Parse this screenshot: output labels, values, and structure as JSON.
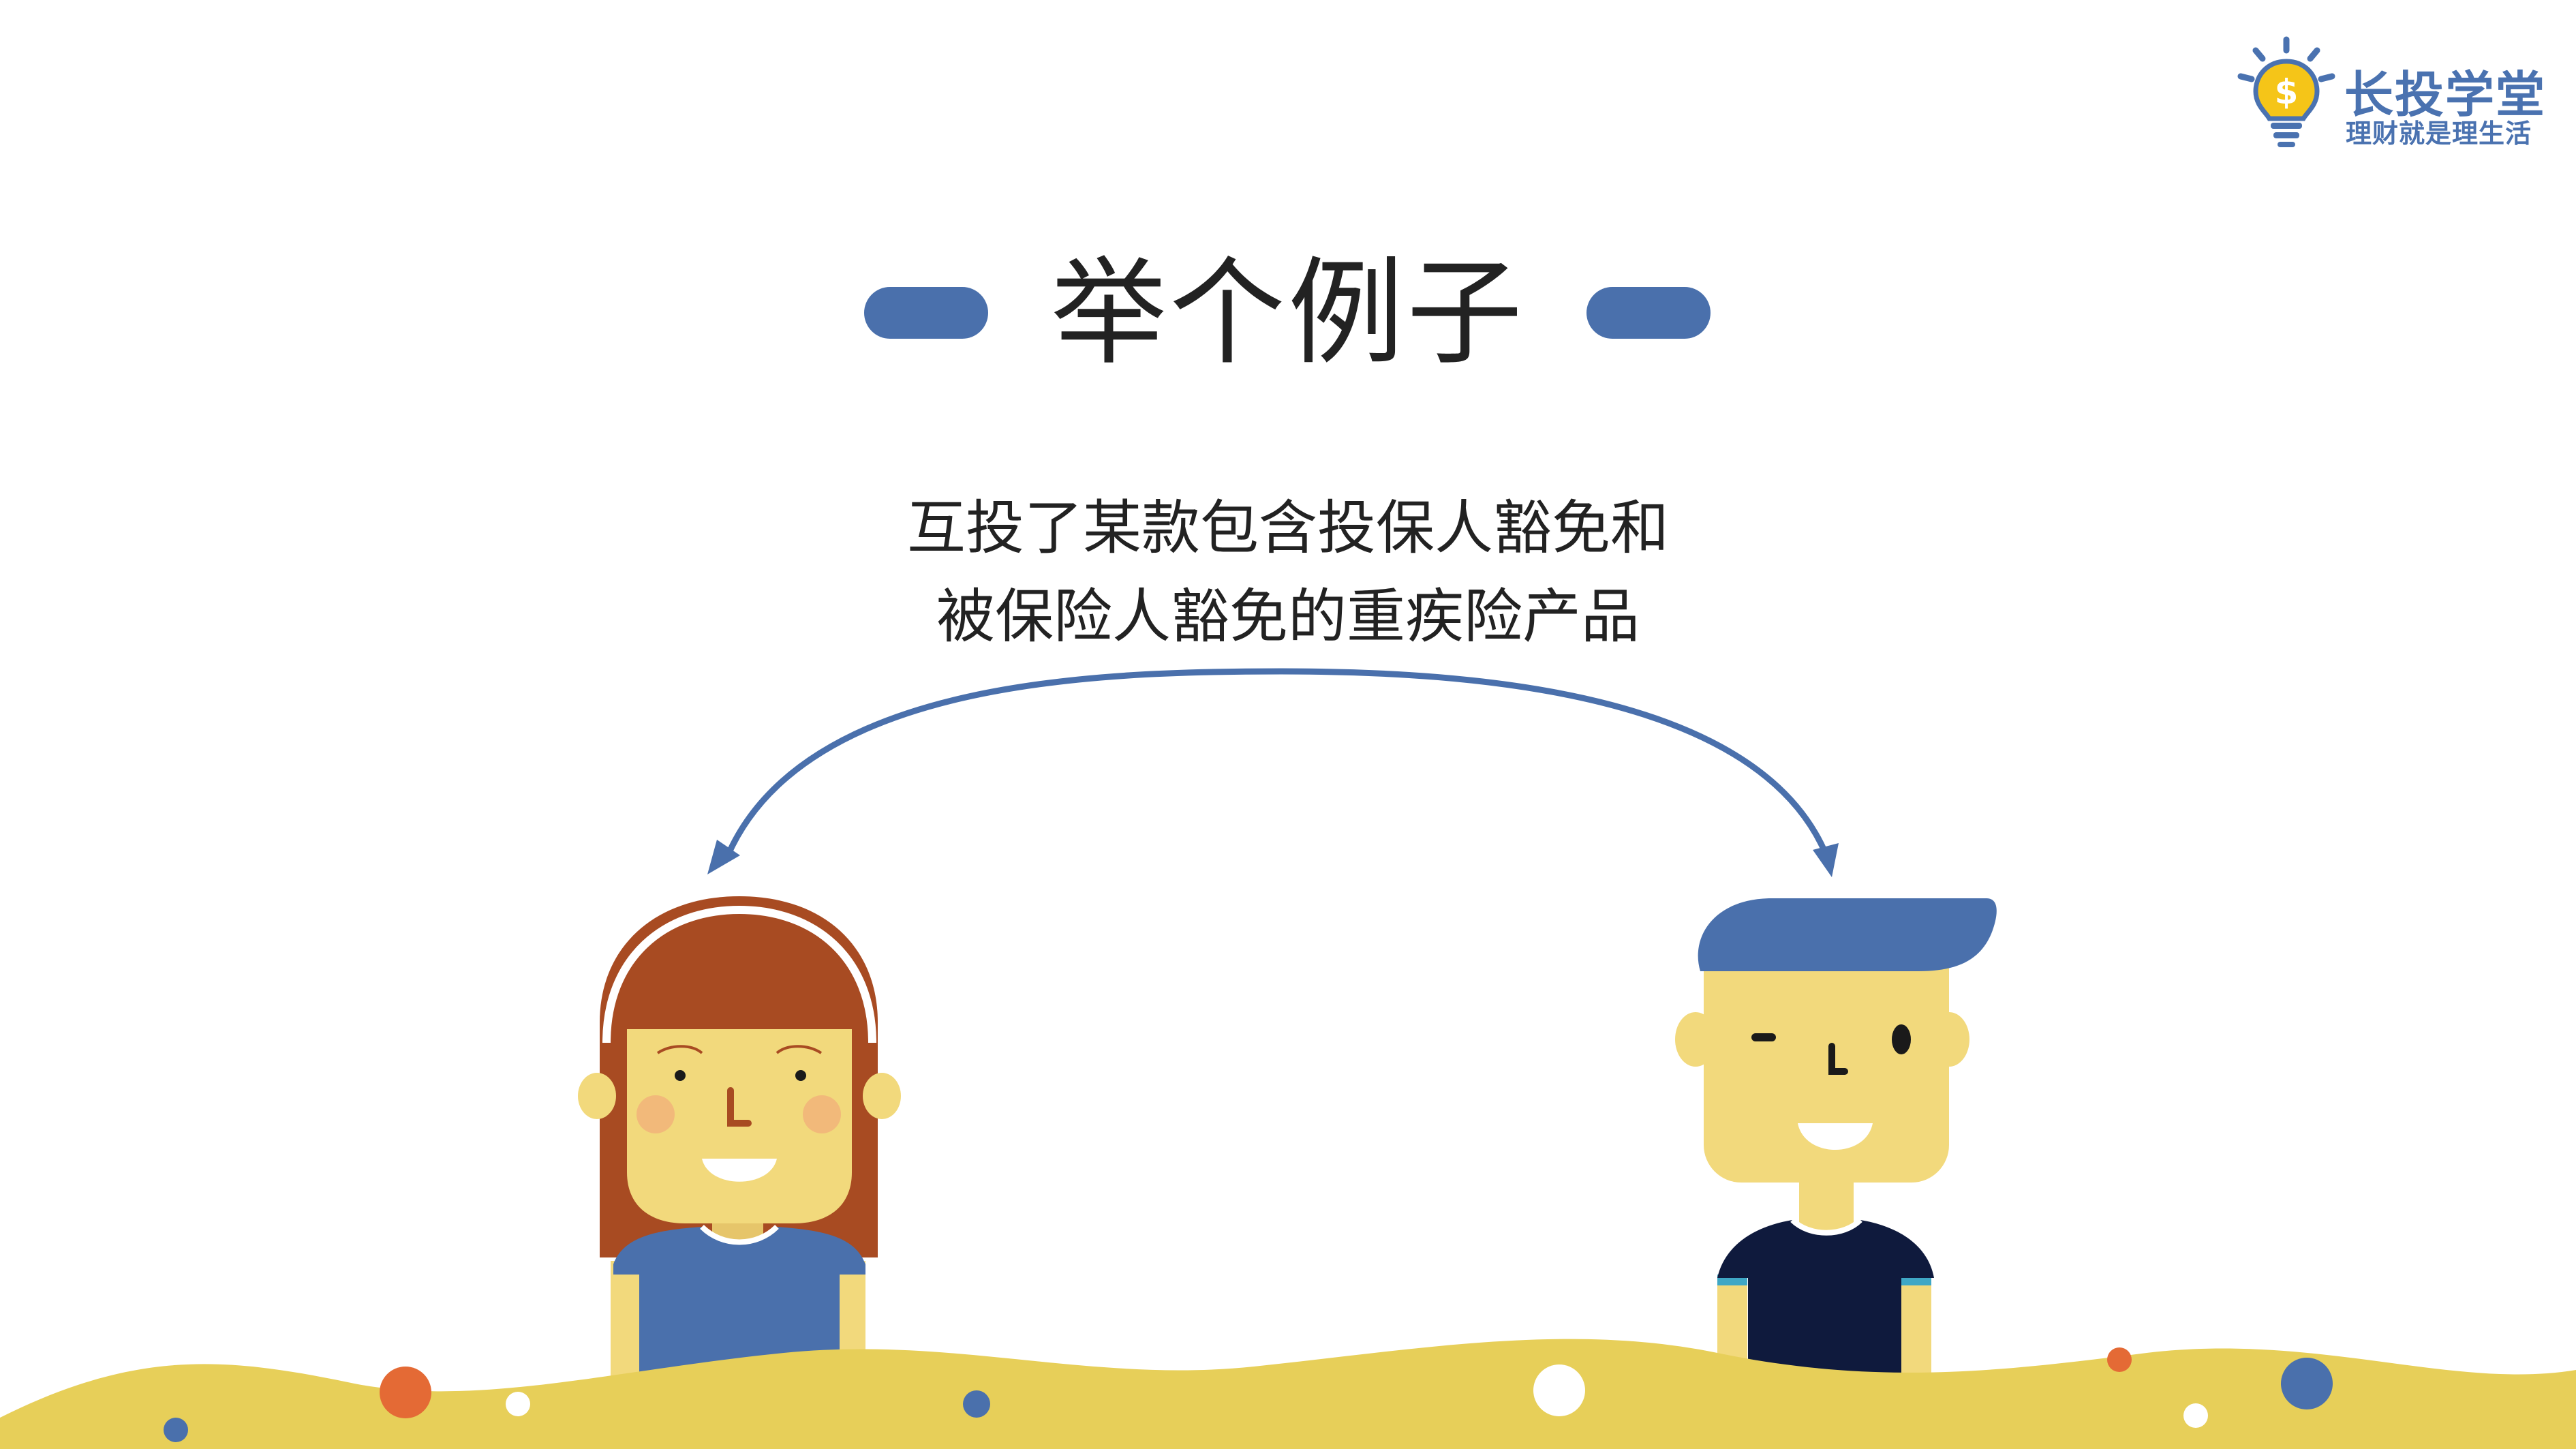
{
  "logo": {
    "title": "长投学堂",
    "slogan": "理财就是理生活",
    "icon": "lightbulb-dollar-icon"
  },
  "slide": {
    "title": "举个例子",
    "description_line1": "互投了某款包含投保人豁免和",
    "description_line2": "被保险人豁免的重疾险产品"
  },
  "colors": {
    "accent_blue": "#4a70ac",
    "skin": "#f2d97c",
    "hair_red": "#a84b22",
    "dark_shirt": "#0f1a3d",
    "ground_yellow": "#e7cf59",
    "dot_orange": "#e46a35"
  }
}
